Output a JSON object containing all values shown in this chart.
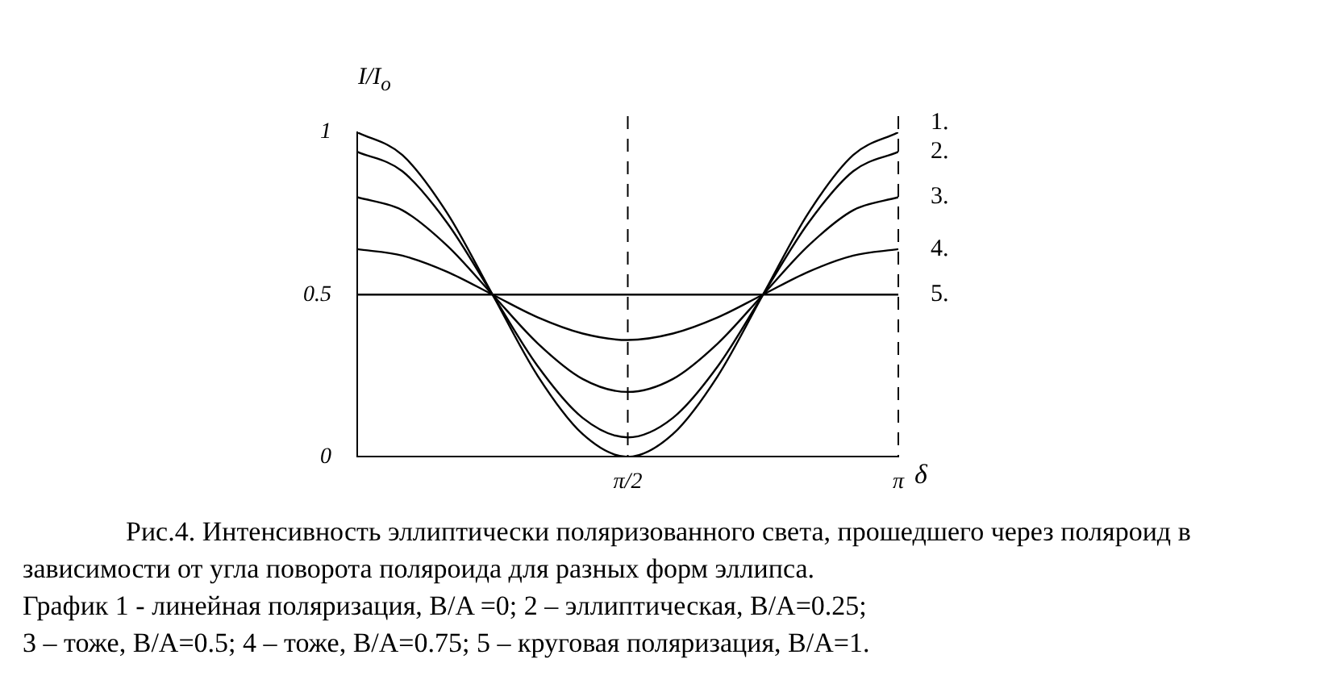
{
  "chart_data": {
    "type": "line",
    "ylabel": "I/I$_{o}$",
    "xlabel": "δ",
    "x": [
      0,
      0.2618,
      0.5236,
      0.7854,
      1.0472,
      1.309,
      1.5708,
      1.8326,
      2.0944,
      2.3562,
      2.618,
      2.8798,
      3.1416
    ],
    "series": [
      {
        "name": "1.",
        "color": "#000000",
        "values": [
          1,
          0.93,
          0.75,
          0.5,
          0.25,
          0.07,
          0,
          0.07,
          0.25,
          0.5,
          0.75,
          0.93,
          1
        ]
      },
      {
        "name": "2.",
        "color": "#000000",
        "values": [
          0.94,
          0.88,
          0.72,
          0.5,
          0.28,
          0.12,
          0.06,
          0.12,
          0.28,
          0.5,
          0.72,
          0.88,
          0.94
        ]
      },
      {
        "name": "3.",
        "color": "#000000",
        "values": [
          0.8,
          0.76,
          0.65,
          0.5,
          0.35,
          0.24,
          0.2,
          0.24,
          0.35,
          0.5,
          0.65,
          0.76,
          0.8
        ]
      },
      {
        "name": "4.",
        "color": "#000000",
        "values": [
          0.64,
          0.62,
          0.57,
          0.5,
          0.43,
          0.38,
          0.36,
          0.38,
          0.43,
          0.5,
          0.57,
          0.62,
          0.64
        ]
      },
      {
        "name": "5.",
        "color": "#000000",
        "values": [
          0.5,
          0.5,
          0.5,
          0.5,
          0.5,
          0.5,
          0.5,
          0.5,
          0.5,
          0.5,
          0.5,
          0.5,
          0.5
        ]
      }
    ],
    "xlim": [
      0,
      3.1416
    ],
    "xticks": [
      {
        "value": 1.5708,
        "label": "π/2"
      },
      {
        "value": 3.1416,
        "label": "π"
      }
    ],
    "ylim": [
      0,
      1
    ],
    "yticks": [
      0,
      0.5,
      1
    ],
    "ref_lines": [
      {
        "axis": "x",
        "value": 1.5708,
        "line_style": "dashed",
        "color": "#000000"
      },
      {
        "axis": "x",
        "value": 3.1416,
        "line_style": "dashed",
        "color": "#000000"
      }
    ],
    "grid": false,
    "legend": false,
    "marker": "none",
    "line_style": "solid",
    "annotations": [
      "Рис.4. Интенсивность эллиптически поляризованного света, прошедшего через поляроид в зависимости от угла поворота поляроида для разных форм эллипса.",
      "График 1 - линейная поляризация, B/A =0; 2 – эллиптическая, B/A=0.25;",
      "3 – тоже, B/A=0.5; 4 – тоже, B/A=0.75; 5 – круговая поляризация, B/A=1."
    ]
  }
}
